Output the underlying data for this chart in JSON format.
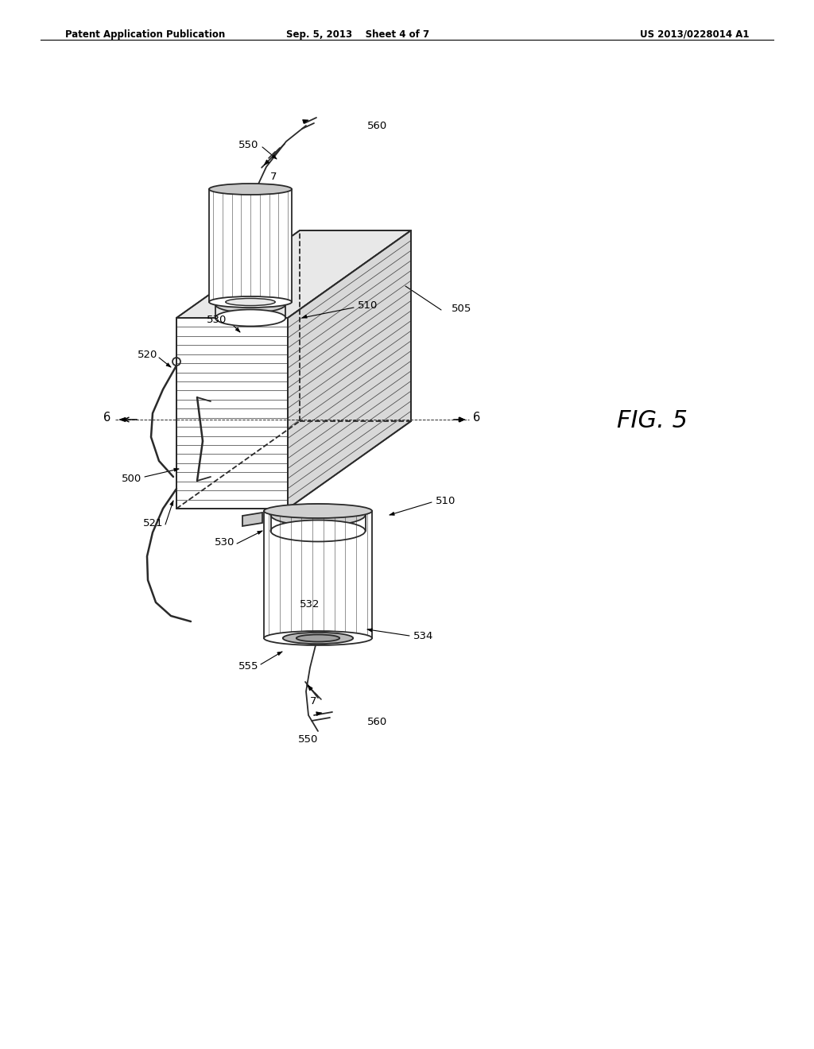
{
  "background_color": "#ffffff",
  "header_left": "Patent Application Publication",
  "header_mid": "Sep. 5, 2013    Sheet 4 of 7",
  "header_right": "US 2013/0228014 A1",
  "fig_label": "FIG. 5",
  "line_color": "#2a2a2a",
  "text_color": "#000000"
}
